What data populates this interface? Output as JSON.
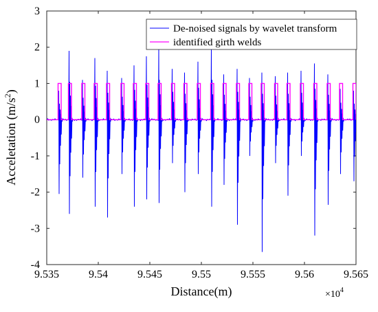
{
  "chart_data": {
    "type": "line",
    "title": "",
    "xlabel": "Distance(m)",
    "ylabel_main": "Acceletation (m/s",
    "ylabel_sup": "2",
    "ylabel_close": ")",
    "x_exponent_base": "×10",
    "x_exponent_power": "4",
    "xlim": [
      95350,
      95650
    ],
    "ylim": [
      -4,
      3
    ],
    "x_ticks": [
      95350,
      95400,
      95450,
      95500,
      95550,
      95600,
      95650
    ],
    "x_tick_labels": [
      "9.535",
      "9.54",
      "9.545",
      "9.55",
      "9.555",
      "9.56",
      "9.565"
    ],
    "y_ticks": [
      -4,
      -3,
      -2,
      -1,
      0,
      1,
      2,
      3
    ],
    "y_tick_labels": [
      "-4",
      "-3",
      "-2",
      "-1",
      "0",
      "1",
      "2",
      "3"
    ],
    "grid": false,
    "legend_position": "top-right",
    "series": [
      {
        "name": "De-noised signals by wavelet transform",
        "color": "#0000ff",
        "spikes": [
          {
            "x": 95362,
            "max": 0.8,
            "min": -2.05
          },
          {
            "x": 95372,
            "max": 1.9,
            "min": -2.6
          },
          {
            "x": 95385,
            "max": 1.1,
            "min": -1.6
          },
          {
            "x": 95397,
            "max": 1.7,
            "min": -2.4
          },
          {
            "x": 95409,
            "max": 1.35,
            "min": -2.7
          },
          {
            "x": 95423,
            "max": 1.15,
            "min": -1.5
          },
          {
            "x": 95435,
            "max": 1.5,
            "min": -2.4
          },
          {
            "x": 95447,
            "max": 1.75,
            "min": -2.2
          },
          {
            "x": 95459,
            "max": 2.0,
            "min": -2.3
          },
          {
            "x": 95472,
            "max": 1.4,
            "min": -1.2
          },
          {
            "x": 95484,
            "max": 1.3,
            "min": -2.0
          },
          {
            "x": 95497,
            "max": 1.6,
            "min": -1.5
          },
          {
            "x": 95510,
            "max": 2.0,
            "min": -2.4
          },
          {
            "x": 95522,
            "max": 1.25,
            "min": -1.8
          },
          {
            "x": 95535,
            "max": 1.4,
            "min": -2.9
          },
          {
            "x": 95547,
            "max": 1.15,
            "min": -1.0
          },
          {
            "x": 95559,
            "max": 1.3,
            "min": -3.65
          },
          {
            "x": 95572,
            "max": 1.2,
            "min": -1.2
          },
          {
            "x": 95584,
            "max": 1.3,
            "min": -2.1
          },
          {
            "x": 95597,
            "max": 1.35,
            "min": -1.0
          },
          {
            "x": 95610,
            "max": 1.55,
            "min": -3.2
          },
          {
            "x": 95623,
            "max": 1.25,
            "min": -2.35
          },
          {
            "x": 95635,
            "max": 0.85,
            "min": -1.5
          },
          {
            "x": 95648,
            "max": 0.8,
            "min": -1.7
          }
        ]
      },
      {
        "name": "identified girth welds",
        "color": "#ff00ff",
        "pulses": [
          [
            95361,
            95364
          ],
          [
            95371,
            95374
          ],
          [
            95384,
            95387
          ],
          [
            95396,
            95399
          ],
          [
            95408,
            95411
          ],
          [
            95422,
            95425
          ],
          [
            95434,
            95437
          ],
          [
            95446,
            95449
          ],
          [
            95458,
            95461
          ],
          [
            95471,
            95474
          ],
          [
            95483,
            95486
          ],
          [
            95496,
            95499
          ],
          [
            95509,
            95512
          ],
          [
            95521,
            95524
          ],
          [
            95534,
            95537
          ],
          [
            95546,
            95549
          ],
          [
            95558,
            95561
          ],
          [
            95571,
            95574
          ],
          [
            95583,
            95586
          ],
          [
            95596,
            95599
          ],
          [
            95609,
            95612
          ],
          [
            95622,
            95625
          ],
          [
            95634,
            95637
          ],
          [
            95647,
            95650
          ]
        ],
        "low": 0,
        "high": 1
      }
    ]
  }
}
